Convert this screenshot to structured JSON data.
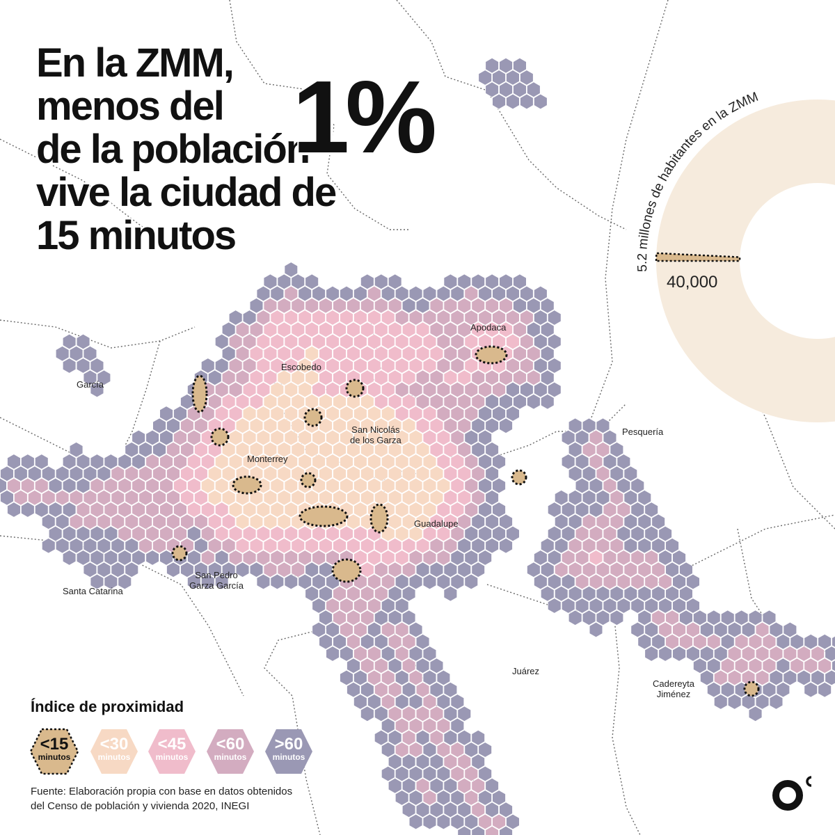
{
  "headline": {
    "lines": [
      "En la ZMM,",
      "menos del",
      "de la población",
      "vive la ciudad de",
      "15 minutos"
    ],
    "big_number": "1%"
  },
  "municipalities": {
    "garcia": "García",
    "escobedo": "Escobedo",
    "apodaca": "Apodaca",
    "san_nicolas": [
      "San Nicolás",
      "de los Garza"
    ],
    "monterrey": "Monterrey",
    "pesqueria": "Pesquería",
    "guadalupe": "Guadalupe",
    "san_pedro": [
      "San Pedro",
      "Garza García"
    ],
    "santa_catarina": "Santa Catarina",
    "juarez": "Juárez",
    "cadereyta": [
      "Cadereyta",
      "Jiménez"
    ]
  },
  "donut": {
    "arc_label": "5.2 millones de habitantes en la ZMM",
    "total_population": 5200000,
    "highlight_value": 40000,
    "highlight_label": "40,000"
  },
  "legend": {
    "title": "Índice de proximidad",
    "items": [
      {
        "value": "<15",
        "unit": "minutos",
        "color": "#d9b98d"
      },
      {
        "value": "<30",
        "unit": "minutos",
        "color": "#f7d9c4"
      },
      {
        "value": "<45",
        "unit": "minutos",
        "color": "#f0bccb"
      },
      {
        "value": "<60",
        "unit": "minutos",
        "color": "#d3acc0"
      },
      {
        "value": ">60",
        "unit": "minutos",
        "color": "#9a98b4"
      }
    ]
  },
  "source": {
    "line1": "Fuente: Elaboración propia con base en datos obtenidos",
    "line2": "del Censo de población y vivienda 2020, INEGI"
  },
  "colors": {
    "c15": "#d9b98d",
    "c30": "#f7d9c4",
    "c45": "#f0bccb",
    "c60": "#d3acc0",
    "c60plus": "#9a98b4",
    "donut": "#f6ebdd",
    "text": "#111111"
  }
}
